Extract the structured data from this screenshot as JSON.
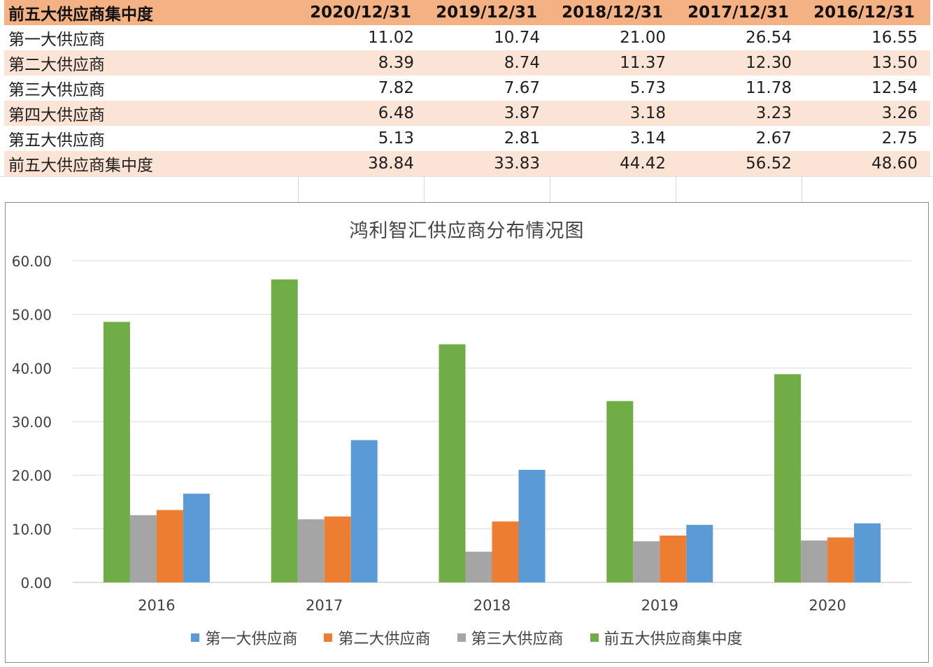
{
  "table": {
    "header": [
      "前五大供应商集中度",
      "2020/12/31",
      "2019/12/31",
      "2018/12/31",
      "2017/12/31",
      "2016/12/31"
    ],
    "rows": [
      {
        "name": "第一大供应商",
        "values": [
          "11.02",
          "10.74",
          "21.00",
          "26.54",
          "16.55"
        ]
      },
      {
        "name": "第二大供应商",
        "values": [
          "8.39",
          "8.74",
          "11.37",
          "12.30",
          "13.50"
        ]
      },
      {
        "name": "第三大供应商",
        "values": [
          "7.82",
          "7.67",
          "5.73",
          "11.78",
          "12.54"
        ]
      },
      {
        "name": "第四大供应商",
        "values": [
          "6.48",
          "3.87",
          "3.18",
          "3.23",
          "3.26"
        ]
      },
      {
        "name": "第五大供应商",
        "values": [
          "5.13",
          "2.81",
          "3.14",
          "2.67",
          "2.75"
        ]
      },
      {
        "name": "前五大供应商集中度",
        "values": [
          "38.84",
          "33.83",
          "44.42",
          "56.52",
          "48.60"
        ]
      }
    ]
  },
  "colors": {
    "header_bg": "#f4b183",
    "band_bg": "#fbe3d6",
    "green": "#70ad47",
    "gray": "#a5a5a5",
    "orange": "#ed7d31",
    "blue": "#5b9bd5"
  },
  "chart_data": {
    "type": "bar",
    "title": "鸿利智汇供应商分布情况图",
    "categories": [
      "2016",
      "2017",
      "2018",
      "2019",
      "2020"
    ],
    "ylim": [
      0,
      60
    ],
    "yticks": [
      "0.00",
      "10.00",
      "20.00",
      "30.00",
      "40.00",
      "50.00",
      "60.00"
    ],
    "grid": true,
    "legend_position": "bottom",
    "series": [
      {
        "name": "前五大供应商集中度",
        "color": "#70ad47",
        "values": [
          48.6,
          56.52,
          44.42,
          33.83,
          38.84
        ]
      },
      {
        "name": "第三大供应商",
        "color": "#a5a5a5",
        "values": [
          12.54,
          11.78,
          5.73,
          7.67,
          7.82
        ]
      },
      {
        "name": "第二大供应商",
        "color": "#ed7d31",
        "values": [
          13.5,
          12.3,
          11.37,
          8.74,
          8.39
        ]
      },
      {
        "name": "第一大供应商",
        "color": "#5b9bd5",
        "values": [
          16.55,
          26.54,
          21.0,
          10.74,
          11.02
        ]
      }
    ],
    "legend": [
      {
        "name": "第一大供应商",
        "color": "#5b9bd5"
      },
      {
        "name": "第二大供应商",
        "color": "#ed7d31"
      },
      {
        "name": "第三大供应商",
        "color": "#a5a5a5"
      },
      {
        "name": "前五大供应商集中度",
        "color": "#70ad47"
      }
    ]
  }
}
